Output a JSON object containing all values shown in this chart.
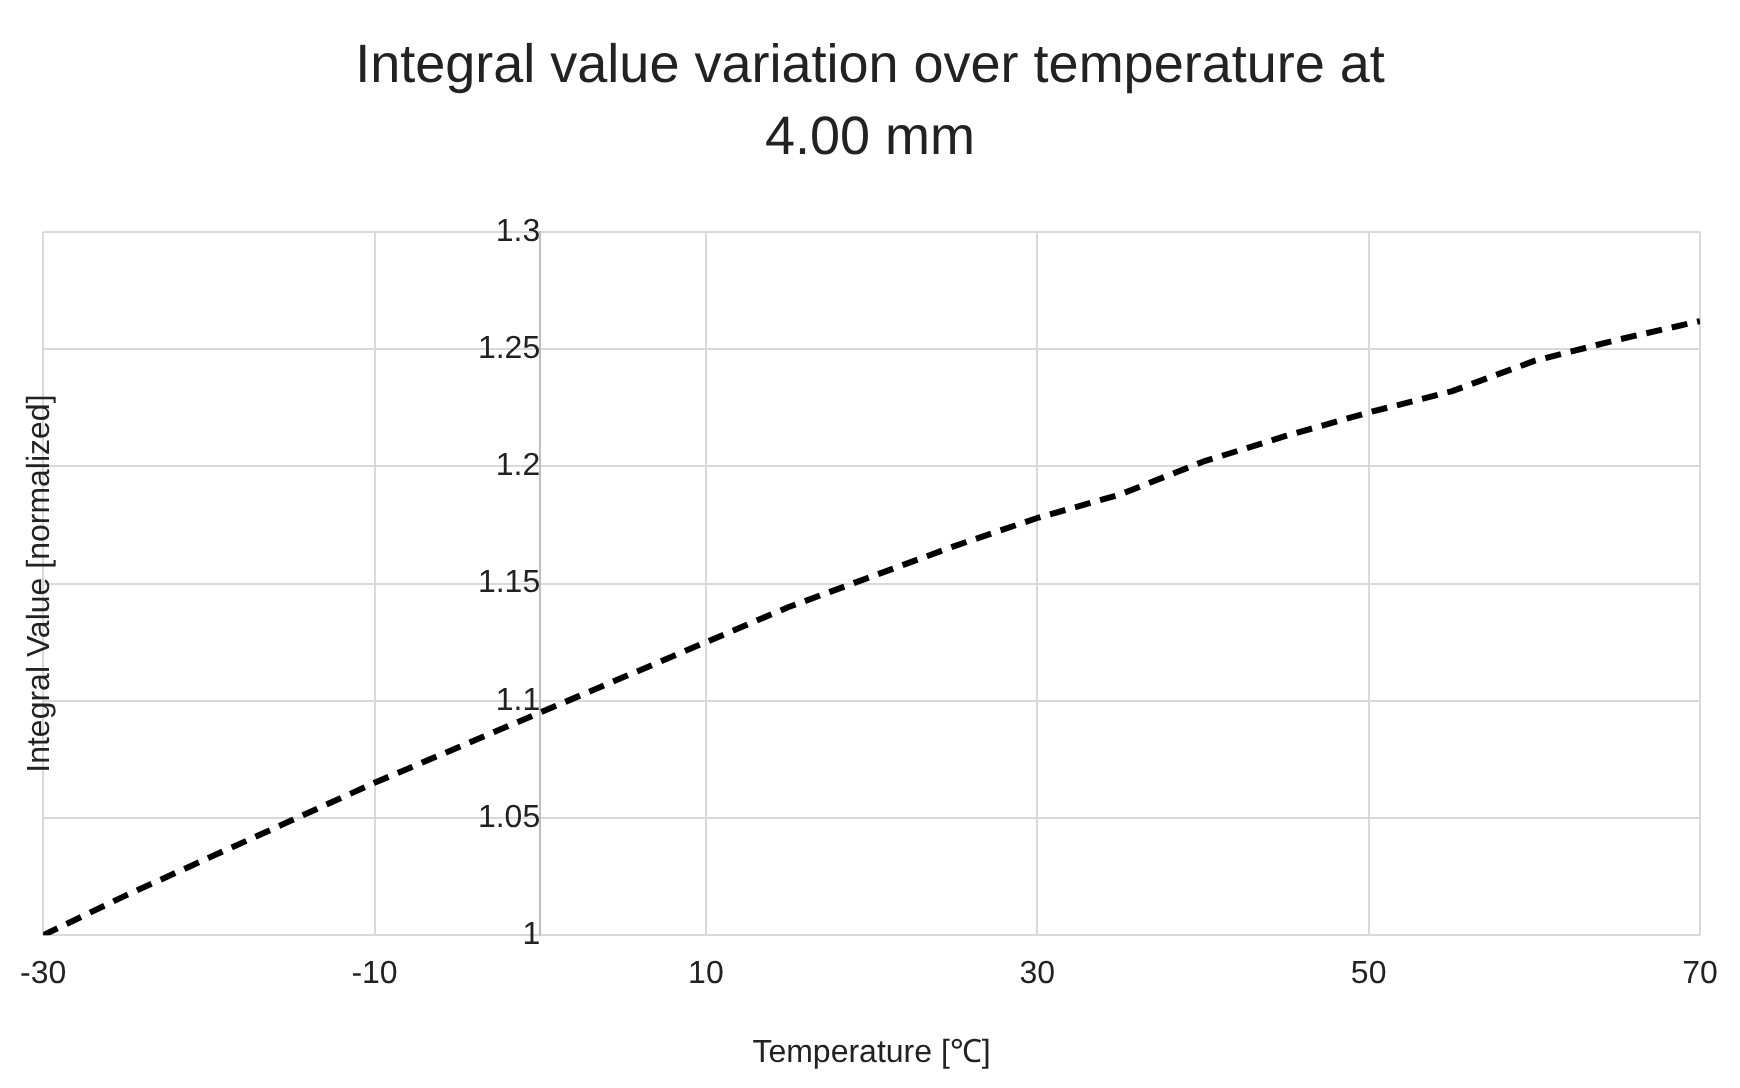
{
  "chart_data": {
    "type": "line",
    "title": "Integral value variation over temperature at 4.00 mm",
    "xlabel": "Temperature [℃]",
    "ylabel": "Integral Value [normalized]",
    "x": [
      -30,
      -25,
      -20,
      -15,
      -10,
      -5,
      0,
      5,
      10,
      15,
      20,
      25,
      30,
      35,
      40,
      45,
      50,
      55,
      60,
      65,
      70
    ],
    "series": [
      {
        "color": "#000000",
        "values": [
          1.0,
          1.017,
          1.033,
          1.049,
          1.065,
          1.08,
          1.095,
          1.11,
          1.125,
          1.14,
          1.153,
          1.166,
          1.178,
          1.188,
          1.202,
          1.213,
          1.223,
          1.232,
          1.245,
          1.254,
          1.262
        ]
      }
    ],
    "xlim": [
      -30,
      70
    ],
    "xticks": [
      -30,
      -10,
      10,
      30,
      50,
      70
    ],
    "ylim": [
      1,
      1.3
    ],
    "yticks": [
      1,
      1.05,
      1.1,
      1.15,
      1.2,
      1.25,
      1.3
    ],
    "grid": true,
    "legend": false,
    "marker": "none",
    "line_style": "dashed"
  }
}
